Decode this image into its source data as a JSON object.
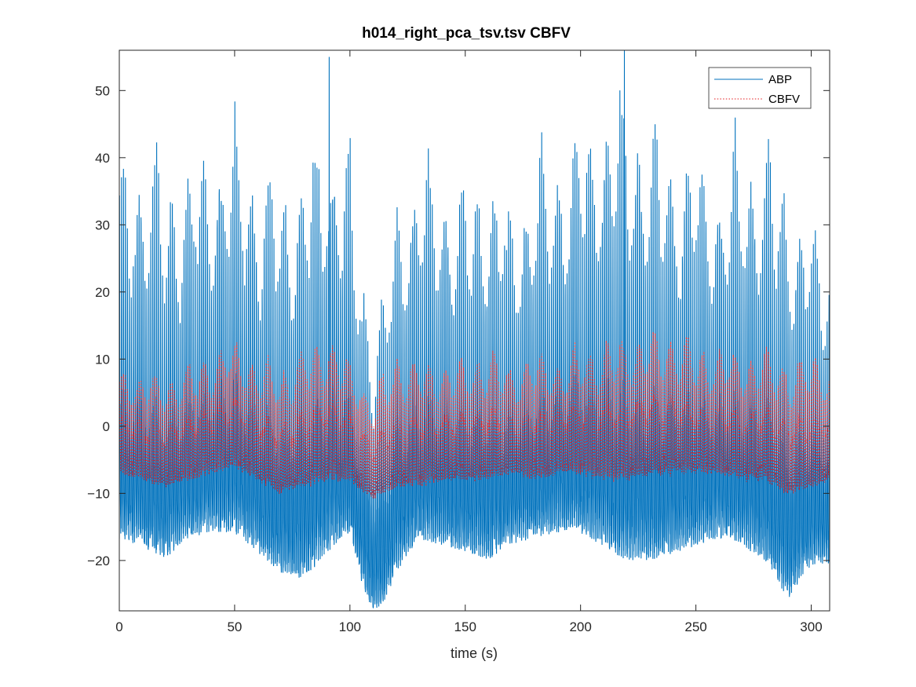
{
  "chart_data": {
    "type": "line",
    "title": "h014_right_pca_tsv.tsv CBFV",
    "xlabel": "time (s)",
    "ylabel": "",
    "xlim": [
      0,
      308
    ],
    "ylim": [
      -27.5,
      56
    ],
    "xticks": [
      0,
      50,
      100,
      150,
      200,
      250,
      300
    ],
    "yticks": [
      -20,
      -10,
      0,
      10,
      20,
      30,
      40,
      50
    ],
    "xtick_labels": [
      "0",
      "50",
      "100",
      "150",
      "200",
      "250",
      "300"
    ],
    "ytick_labels": [
      "−20",
      "−10",
      "0",
      "10",
      "20",
      "30",
      "40",
      "50"
    ],
    "grid": false,
    "legend_position": "top-right",
    "sampling_note_hidden": true,
    "series": [
      {
        "name": "ABP",
        "color": "#0072BD",
        "style": "solid",
        "beat_rate_hz": 1.18,
        "envelope": {
          "t": [
            0,
            10,
            20,
            30,
            40,
            50,
            60,
            70,
            80,
            90,
            100,
            105,
            110,
            115,
            120,
            130,
            140,
            150,
            160,
            170,
            180,
            190,
            200,
            210,
            220,
            230,
            240,
            250,
            260,
            270,
            280,
            290,
            300,
            308
          ],
          "max": [
            44,
            46,
            42,
            43,
            46,
            49,
            44,
            41,
            44,
            50,
            44,
            28,
            22,
            24,
            38,
            44,
            42,
            40,
            44,
            36,
            44,
            46,
            50,
            53,
            54,
            50,
            47,
            45,
            42,
            46,
            48,
            42,
            35,
            30
          ],
          "min": [
            -15,
            -16,
            -18,
            -15,
            -14,
            -14,
            -17,
            -20,
            -21,
            -17,
            -14,
            -22,
            -26,
            -25,
            -20,
            -15,
            -16,
            -17,
            -18,
            -16,
            -15,
            -14,
            -14,
            -16,
            -18,
            -18,
            -17,
            -16,
            -15,
            -16,
            -18,
            -24,
            -19,
            -19
          ]
        },
        "peaks": [
          {
            "t": 91,
            "y": 55
          },
          {
            "t": 219,
            "y": 56
          },
          {
            "t": 110,
            "y": -27
          }
        ]
      },
      {
        "name": "CBFV",
        "color": "#E41A1C",
        "style": "dotted",
        "beat_rate_hz": 1.18,
        "envelope": {
          "t": [
            0,
            10,
            20,
            30,
            40,
            50,
            60,
            70,
            80,
            90,
            100,
            110,
            120,
            130,
            140,
            150,
            160,
            170,
            180,
            190,
            200,
            210,
            220,
            230,
            240,
            250,
            260,
            270,
            280,
            290,
            300,
            308
          ],
          "max": [
            10,
            9,
            9,
            10,
            12,
            14,
            11,
            10,
            13,
            16,
            11,
            6,
            12,
            11,
            11,
            11,
            13,
            10,
            12,
            11,
            13,
            14,
            15,
            15,
            16,
            13,
            13,
            12,
            13,
            11,
            12,
            11
          ],
          "min": [
            -7,
            -8,
            -9,
            -8,
            -7,
            -6,
            -8,
            -10,
            -9,
            -8,
            -8,
            -11,
            -9,
            -9,
            -8,
            -8,
            -8,
            -7,
            -8,
            -7,
            -7,
            -8,
            -8,
            -7,
            -7,
            -7,
            -7,
            -8,
            -8,
            -10,
            -9,
            -8
          ]
        }
      }
    ]
  }
}
